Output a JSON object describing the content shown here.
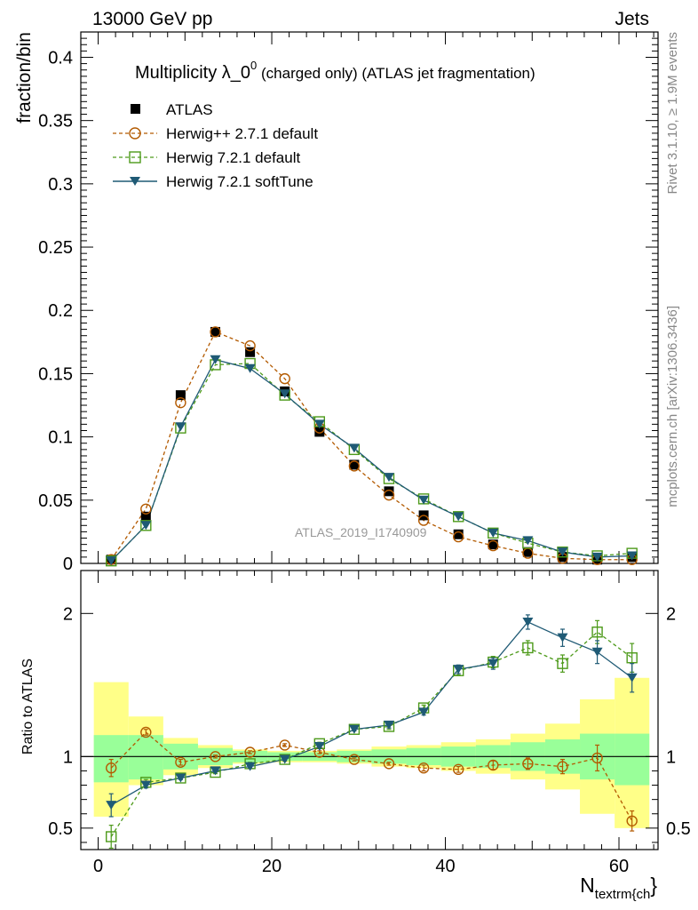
{
  "header": {
    "left": "13000 GeV pp",
    "right": "Jets"
  },
  "title": {
    "main": "Multiplicity λ_0",
    "sup": "0",
    "rest": " (charged only) (ATLAS jet fragmentation)"
  },
  "side_labels": {
    "rivet": "Rivet 3.1.10, ≥ 1.9M events",
    "mcplots": "mcplots.cern.ch [arXiv:1306.3436]"
  },
  "watermark": "ATLAS_2019_I1740909",
  "colors": {
    "herwig271": "#b35a00",
    "herwig721": "#4d9a1a",
    "softtune": "#1f5a75",
    "band_inner": "#99ff99",
    "band_outer": "#ffff88"
  },
  "chart_data": [
    {
      "type": "line",
      "ylabel": "fraction/bin",
      "xlabel_main": "N",
      "xlabel_sub": "textrm{ch",
      "xlabel_close": "}",
      "xlim": [
        -2,
        64.5
      ],
      "ylim": [
        0,
        0.42
      ],
      "yticks": [
        0,
        0.05,
        0.1,
        0.15,
        0.2,
        0.25,
        0.3,
        0.35,
        0.4
      ],
      "ytick_labels": [
        "0",
        "0.05",
        "0.1",
        "0.15",
        "0.2",
        "0.25",
        "0.3",
        "0.35",
        "0.4"
      ],
      "x": [
        1.5,
        5.5,
        9.5,
        13.5,
        17.5,
        21.5,
        25.5,
        29.5,
        33.5,
        37.5,
        41.5,
        45.5,
        49.5,
        53.5,
        57.5,
        61.5
      ],
      "legend": [
        "ATLAS",
        "Herwig++ 2.7.1 default",
        "Herwig 7.2.1 default",
        "Herwig 7.2.1 softTune"
      ],
      "series": [
        {
          "name": "ATLAS",
          "key": "data",
          "values": [
            0.003,
            0.037,
            0.133,
            0.183,
            0.167,
            0.136,
            0.104,
            0.078,
            0.057,
            0.038,
            0.023,
            0.015,
            0.009,
            0.005,
            0.003,
            0.005
          ]
        },
        {
          "name": "Herwig++ 2.7.1 default",
          "key": "herwig271",
          "values": [
            0.003,
            0.043,
            0.127,
            0.183,
            0.172,
            0.146,
            0.107,
            0.077,
            0.054,
            0.034,
            0.021,
            0.014,
            0.008,
            0.004,
            0.003,
            0.003
          ]
        },
        {
          "name": "Herwig 7.2.1 default",
          "key": "herwig721",
          "values": [
            0.002,
            0.03,
            0.107,
            0.157,
            0.158,
            0.133,
            0.112,
            0.09,
            0.067,
            0.051,
            0.037,
            0.024,
            0.016,
            0.009,
            0.006,
            0.008
          ]
        },
        {
          "name": "Herwig 7.2.1 softTune",
          "key": "softtune",
          "values": [
            0.002,
            0.03,
            0.108,
            0.161,
            0.154,
            0.134,
            0.11,
            0.091,
            0.068,
            0.05,
            0.037,
            0.024,
            0.018,
            0.009,
            0.005,
            0.006
          ]
        }
      ]
    },
    {
      "type": "line",
      "ylabel": "Ratio to ATLAS",
      "ylim": [
        0.35,
        2.3
      ],
      "xticks": [
        0,
        20,
        40,
        60
      ],
      "xtick_labels": [
        "0",
        "20",
        "40",
        "60"
      ],
      "yticks": [
        0.5,
        1,
        2
      ],
      "ytick_labels": [
        "0.5",
        "1",
        "2"
      ],
      "x": [
        1.5,
        5.5,
        9.5,
        13.5,
        17.5,
        21.5,
        25.5,
        29.5,
        33.5,
        37.5,
        41.5,
        45.5,
        49.5,
        53.5,
        57.5,
        61.5
      ],
      "bin_edges": [
        -0.5,
        3.5,
        7.5,
        11.5,
        15.5,
        19.5,
        23.5,
        27.5,
        31.5,
        35.5,
        39.5,
        43.5,
        47.5,
        51.5,
        55.5,
        59.5,
        63.5
      ],
      "band_inner": {
        "lo": [
          0.82,
          0.84,
          0.91,
          0.94,
          0.96,
          0.97,
          0.97,
          0.96,
          0.95,
          0.94,
          0.93,
          0.92,
          0.9,
          0.88,
          0.84,
          0.8
        ],
        "hi": [
          1.15,
          1.15,
          1.09,
          1.06,
          1.04,
          1.03,
          1.03,
          1.04,
          1.05,
          1.06,
          1.07,
          1.08,
          1.1,
          1.12,
          1.16,
          1.16
        ]
      },
      "band_outer": {
        "lo": [
          0.58,
          0.8,
          0.87,
          0.92,
          0.95,
          0.96,
          0.96,
          0.95,
          0.93,
          0.92,
          0.9,
          0.88,
          0.84,
          0.77,
          0.6,
          0.5
        ],
        "hi": [
          1.52,
          1.28,
          1.13,
          1.08,
          1.05,
          1.04,
          1.04,
          1.05,
          1.07,
          1.08,
          1.1,
          1.12,
          1.16,
          1.23,
          1.4,
          1.55
        ]
      },
      "series": [
        {
          "name": "Herwig++ 2.7.1 default",
          "key": "herwig271",
          "values": [
            0.92,
            1.17,
            0.96,
            1.0,
            1.03,
            1.08,
            1.03,
            0.98,
            0.95,
            0.92,
            0.91,
            0.94,
            0.95,
            0.93,
            0.99,
            0.55
          ],
          "err": [
            0.06,
            0.02,
            0.02,
            0.01,
            0.01,
            0.01,
            0.01,
            0.01,
            0.01,
            0.02,
            0.02,
            0.03,
            0.04,
            0.05,
            0.09,
            0.07
          ]
        },
        {
          "name": "Herwig 7.2.1 default",
          "key": "herwig721",
          "values": [
            0.44,
            0.82,
            0.85,
            0.89,
            0.95,
            0.98,
            1.09,
            1.19,
            1.21,
            1.34,
            1.6,
            1.66,
            1.76,
            1.65,
            1.87,
            1.69
          ],
          "err": [
            0.08,
            0.02,
            0.01,
            0.01,
            0.01,
            0.01,
            0.01,
            0.01,
            0.02,
            0.02,
            0.03,
            0.04,
            0.05,
            0.06,
            0.08,
            0.1
          ]
        },
        {
          "name": "Herwig 7.2.1 softTune",
          "key": "softtune",
          "values": [
            0.66,
            0.8,
            0.85,
            0.9,
            0.93,
            0.98,
            1.07,
            1.19,
            1.22,
            1.31,
            1.61,
            1.65,
            1.94,
            1.83,
            1.73,
            1.55
          ],
          "err": [
            0.08,
            0.02,
            0.01,
            0.01,
            0.01,
            0.01,
            0.01,
            0.01,
            0.02,
            0.02,
            0.03,
            0.04,
            0.05,
            0.06,
            0.08,
            0.1
          ]
        }
      ]
    }
  ]
}
